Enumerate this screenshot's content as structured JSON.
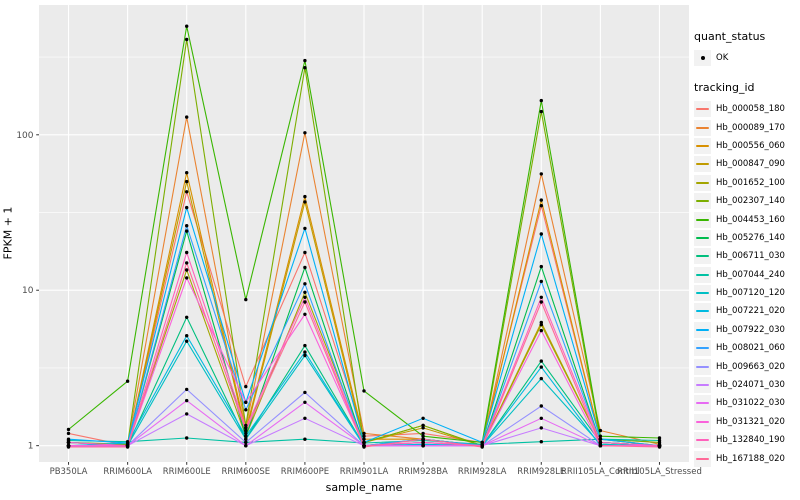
{
  "legend": {
    "quant_status_title": "quant_status",
    "quant_status_items": [
      "OK"
    ],
    "tracking_title": "tracking_id"
  },
  "chart_data": {
    "type": "line",
    "title": "",
    "xlabel": "sample_name",
    "ylabel": "FPKM + 1",
    "y_scale": "log10",
    "ylim": [
      0.785,
      684
    ],
    "y_ticks": [
      1,
      10,
      100
    ],
    "y_minor_ticks": [
      3.162,
      31.62,
      316.2
    ],
    "grid": "on",
    "legend_position": "right",
    "panel_bg": "#EBEBEB",
    "grid_color": "#FFFFFF",
    "tick_label_color": "#4D4D4D",
    "point_color": "#000000",
    "point_legend_label": "OK",
    "categories": [
      "PB350LA",
      "RRIM600LA",
      "RRIM600LE",
      "RRIM600SE",
      "RRIM600PE",
      "RRIM901LA",
      "RRIM928BA",
      "RRIM928LA",
      "RRIM928LE",
      "RRII105LA_Control",
      "RRII105LA_Stressed"
    ],
    "series": [
      {
        "name": "Hb_000058_180",
        "color": "#F8766D",
        "values": [
          1.2,
          1.0,
          43,
          2.4,
          17.5,
          1.15,
          1.2,
          1.05,
          35,
          1.1,
          1.0
        ]
      },
      {
        "name": "Hb_000089_170",
        "color": "#EA8331",
        "values": [
          1.0,
          1.02,
          130,
          1.3,
          103,
          1.2,
          1.1,
          1.0,
          56,
          1.25,
          1.02
        ]
      },
      {
        "name": "Hb_000556_060",
        "color": "#D89000",
        "values": [
          1.0,
          1.0,
          57,
          1.25,
          40,
          1.1,
          1.1,
          1.0,
          38,
          1.1,
          1.0
        ]
      },
      {
        "name": "Hb_000847_090",
        "color": "#C09B00",
        "values": [
          1.0,
          1.0,
          50,
          1.2,
          37,
          1.05,
          1.3,
          1.0,
          6.2,
          1.05,
          1.0
        ]
      },
      {
        "name": "Hb_001652_100",
        "color": "#A3A500",
        "values": [
          1.0,
          1.0,
          13.5,
          1.15,
          9.7,
          1.05,
          1.35,
          1.0,
          6.0,
          1.05,
          1.0
        ]
      },
      {
        "name": "Hb_002307_140",
        "color": "#7CAE00",
        "values": [
          1.05,
          1.02,
          410,
          1.35,
          270,
          1.05,
          1.35,
          1.0,
          141,
          1.1,
          1.05
        ]
      },
      {
        "name": "Hb_004453_160",
        "color": "#39B600",
        "values": [
          1.27,
          2.6,
          500,
          8.7,
          300,
          2.25,
          1.15,
          1.05,
          166,
          1.15,
          1.12
        ]
      },
      {
        "name": "Hb_005276_140",
        "color": "#00BB4E",
        "values": [
          1.05,
          1.0,
          24,
          1.15,
          14,
          1.0,
          1.1,
          1.0,
          14.2,
          1.05,
          1.0
        ]
      },
      {
        "name": "Hb_006711_030",
        "color": "#00BF7D",
        "values": [
          1.05,
          1.0,
          6.7,
          1.1,
          4.4,
          1.0,
          1.05,
          1.0,
          3.5,
          1.05,
          1.0
        ]
      },
      {
        "name": "Hb_007044_240",
        "color": "#00C1A3",
        "values": [
          1.08,
          1.06,
          1.12,
          1.05,
          1.1,
          1.04,
          1.08,
          1.02,
          1.06,
          1.1,
          1.08
        ]
      },
      {
        "name": "Hb_007120_120",
        "color": "#00BFC4",
        "values": [
          1.0,
          1.0,
          4.7,
          1.1,
          3.8,
          1.0,
          1.0,
          1.0,
          2.7,
          1.02,
          1.0
        ]
      },
      {
        "name": "Hb_007221_020",
        "color": "#00BAE0",
        "values": [
          1.0,
          1.04,
          5.1,
          1.15,
          4.0,
          1.0,
          1.02,
          1.0,
          3.2,
          1.0,
          1.0
        ]
      },
      {
        "name": "Hb_007922_030",
        "color": "#00B0F6",
        "values": [
          1.1,
          1.04,
          34,
          1.9,
          25,
          1.05,
          1.5,
          1.05,
          23,
          1.1,
          1.0
        ]
      },
      {
        "name": "Hb_008021_060",
        "color": "#35A2FF",
        "values": [
          1.05,
          1.0,
          26,
          1.7,
          11,
          1.0,
          1.1,
          1.0,
          11.4,
          1.05,
          1.0
        ]
      },
      {
        "name": "Hb_009663_020",
        "color": "#9590FF",
        "values": [
          1.0,
          1.0,
          2.3,
          1.05,
          2.2,
          1.0,
          1.0,
          1.0,
          1.8,
          1.0,
          1.0
        ]
      },
      {
        "name": "Hb_024071_030",
        "color": "#C77CFF",
        "values": [
          1.0,
          1.0,
          1.6,
          1.0,
          1.5,
          1.0,
          1.0,
          1.0,
          1.3,
          1.0,
          1.0
        ]
      },
      {
        "name": "Hb_031022_030",
        "color": "#E76BF3",
        "values": [
          1.0,
          1.0,
          1.95,
          1.0,
          1.9,
          1.0,
          1.0,
          1.0,
          1.5,
          1.0,
          1.0
        ]
      },
      {
        "name": "Hb_031321_020",
        "color": "#FA62DB",
        "values": [
          1.0,
          1.0,
          12,
          1.9,
          7.0,
          1.0,
          1.05,
          1.0,
          5.5,
          1.0,
          1.0
        ]
      },
      {
        "name": "Hb_132840_190",
        "color": "#FF62BC",
        "values": [
          1.05,
          1.0,
          17.5,
          1.3,
          9.0,
          1.0,
          1.05,
          1.0,
          9.0,
          1.05,
          1.0
        ]
      },
      {
        "name": "Hb_167188_020",
        "color": "#FF6A98",
        "values": [
          0.98,
          0.98,
          15,
          1.25,
          8.4,
          0.98,
          1.1,
          0.98,
          8.4,
          1.0,
          0.98
        ]
      }
    ]
  }
}
